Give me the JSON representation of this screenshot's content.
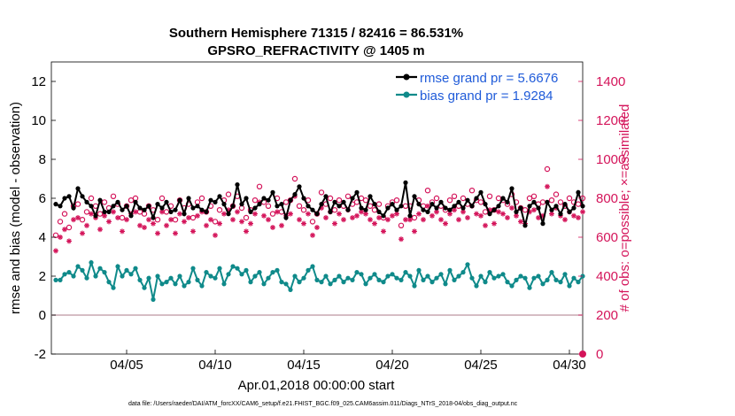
{
  "chart_data": {
    "type": "line",
    "title_line1": "Southern Hemisphere 71315 / 82416 = 86.531%",
    "title_line2": "GPSRO_REFRACTIVITY @ 1405 m",
    "ylabel_left": "rmse and bias (model - observation)",
    "ylabel_right": "# of obs: o=possible; ×=assimilated",
    "xlabel": "Apr.01,2018 00:00:00 start",
    "footer": "data file: /Users/raeder/DAI/ATM_forcXX/CAM6_setup/f.e21.FHIST_BGC.f09_025.CAM6assim.011/Diags_NTrS_2018-04/obs_diag_output.nc",
    "ylim_left": [
      -2,
      13
    ],
    "ylim_right": [
      0,
      1500
    ],
    "xlim": [
      0.75,
      30.75
    ],
    "yticks_left": [
      "-2",
      "0",
      "2",
      "4",
      "6",
      "8",
      "10",
      "12"
    ],
    "yticks_right": [
      "0",
      "200",
      "400",
      "600",
      "800",
      "1000",
      "1200",
      "1400"
    ],
    "xticks": [
      {
        "label": "04/05",
        "day": 5
      },
      {
        "label": "04/10",
        "day": 10
      },
      {
        "label": "04/15",
        "day": 15
      },
      {
        "label": "04/20",
        "day": 20
      },
      {
        "label": "04/25",
        "day": 25
      },
      {
        "label": "04/30",
        "day": 30
      }
    ],
    "legend": [
      {
        "label": "rmse grand pr = 5.6676",
        "color": "#000000"
      },
      {
        "label": "bias grand pr = 1.9284",
        "color": "#0f8a8a"
      }
    ],
    "series": [
      {
        "name": "rmse",
        "color": "#000000",
        "axis": "left",
        "points_per_day": 4,
        "values": [
          5.7,
          5.6,
          6.0,
          6.1,
          5.5,
          6.5,
          6.1,
          5.8,
          5.6,
          5.1,
          5.9,
          5.3,
          5.3,
          5.6,
          5.8,
          5.4,
          5.6,
          5.1,
          5.8,
          5.5,
          5.4,
          5.6,
          5.0,
          5.7,
          5.5,
          5.8,
          5.3,
          5.4,
          5.9,
          5.2,
          6.0,
          5.5,
          5.6,
          5.4,
          5.3,
          5.9,
          5.8,
          6.1,
          5.7,
          5.2,
          5.6,
          6.7,
          5.7,
          6.0,
          5.3,
          5.5,
          5.7,
          6.0,
          5.9,
          6.3,
          5.6,
          5.7,
          5.0,
          5.9,
          6.2,
          6.6,
          6.0,
          5.6,
          5.4,
          5.2,
          5.7,
          6.1,
          5.3,
          5.8,
          5.6,
          5.8,
          5.4,
          6.0,
          6.3,
          5.5,
          5.4,
          6.1,
          5.7,
          5.3,
          5.1,
          5.5,
          5.7,
          5.4,
          5.6,
          6.8,
          5.1,
          6.1,
          5.7,
          5.4,
          5.3,
          5.7,
          5.5,
          5.8,
          5.5,
          5.4,
          5.6,
          5.8,
          5.5,
          5.9,
          5.6,
          6.0,
          6.3,
          5.7,
          5.2,
          5.4,
          5.6,
          6.0,
          5.8,
          6.5,
          5.3,
          5.5,
          4.6,
          5.6,
          5.8,
          5.5,
          4.7,
          5.8,
          5.4,
          5.6,
          5.2,
          5.7,
          5.3,
          5.5,
          6.3,
          5.6,
          5.9,
          5.1,
          5.4,
          5.7,
          5.5,
          5.8,
          5.2,
          5.6,
          6.3,
          5.4,
          5.8,
          5.2,
          5.7,
          6.0,
          5.5,
          5.4,
          5.9,
          5.1,
          5.6,
          6.2,
          5.4,
          5.8,
          5.3,
          5.5,
          5.9,
          5.6,
          5.2,
          5.7,
          6.1,
          5.6,
          5.4,
          5.8,
          5.5,
          6.0,
          6.1,
          5.6,
          5.3,
          5.9,
          5.6,
          5.2,
          5.7,
          5.5,
          6.0,
          5.4,
          5.8,
          6.0,
          5.6,
          5.5,
          6.9,
          5.5,
          5.9,
          6.0,
          5.4,
          5.1,
          6.1,
          5.7,
          4.9,
          6.0,
          5.3,
          5.7,
          5.6,
          5.5,
          5.8,
          5.8,
          6.2
        ]
      },
      {
        "name": "bias",
        "color": "#0f8a8a",
        "axis": "left",
        "points_per_day": 4,
        "values": [
          1.8,
          1.8,
          2.1,
          2.2,
          2.0,
          2.5,
          2.3,
          1.9,
          2.7,
          2.0,
          2.4,
          2.2,
          1.7,
          1.4,
          2.5,
          2.0,
          2.3,
          2.1,
          2.4,
          1.8,
          1.4,
          1.9,
          0.8,
          2.0,
          1.6,
          1.7,
          1.9,
          1.6,
          2.0,
          1.5,
          1.7,
          2.4,
          1.8,
          1.5,
          2.2,
          2.0,
          1.9,
          2.4,
          1.6,
          2.1,
          2.5,
          2.4,
          2.1,
          2.3,
          1.7,
          2.0,
          2.2,
          1.6,
          1.9,
          2.2,
          2.3,
          1.7,
          1.6,
          1.3,
          2.0,
          1.7,
          1.9,
          2.3,
          2.5,
          1.8,
          1.7,
          2.0,
          1.6,
          1.8,
          2.0,
          1.7,
          1.9,
          1.8,
          2.2,
          2.1,
          1.6,
          1.9,
          2.1,
          1.8,
          1.7,
          2.0,
          2.1,
          1.9,
          1.8,
          2.2,
          2.0,
          1.5,
          2.3,
          1.8,
          2.0,
          1.7,
          1.9,
          2.1,
          1.6,
          2.3,
          1.8,
          2.0,
          2.2,
          2.6,
          1.9,
          1.5,
          2.0,
          1.7,
          2.2,
          1.9,
          2.0,
          2.1,
          1.7,
          1.5,
          1.8,
          2.0,
          1.9,
          1.4,
          1.9,
          2.0,
          1.6,
          1.8,
          2.2,
          1.8,
          1.7,
          2.1,
          1.5,
          1.9,
          1.7,
          2.0,
          2.1,
          1.8,
          2.0,
          1.6,
          1.9,
          2.1,
          1.8,
          1.5,
          2.0,
          1.9,
          1.8,
          2.1,
          1.8,
          1.7,
          2.0,
          1.9,
          1.8,
          2.1,
          1.6,
          2.0,
          1.5,
          1.9,
          2.2,
          1.7,
          1.6,
          2.0,
          1.8,
          1.7,
          1.5,
          1.9,
          2.1,
          2.0,
          1.8,
          1.7,
          1.9,
          2.2,
          1.8,
          1.5,
          2.3,
          1.6,
          2.0,
          1.9,
          1.4,
          2.2,
          2.0,
          1.8,
          1.7,
          2.1,
          1.9,
          2.5,
          1.6,
          1.8,
          2.3,
          2.0,
          2.1,
          1.9,
          1.6,
          2.0,
          2.2,
          1.8,
          1.9,
          2.3,
          2.2
        ]
      },
      {
        "name": "possible",
        "color": "#d4145a",
        "axis": "right",
        "marker": "circle",
        "points_per_day": 4,
        "values": [
          610,
          680,
          720,
          650,
          760,
          770,
          690,
          730,
          800,
          760,
          720,
          780,
          750,
          810,
          770,
          700,
          760,
          790,
          800,
          730,
          720,
          760,
          740,
          690,
          800,
          730,
          760,
          690,
          790,
          750,
          770,
          700,
          780,
          800,
          730,
          760,
          680,
          740,
          790,
          820,
          760,
          810,
          750,
          700,
          740,
          790,
          860,
          780,
          760,
          720,
          800,
          730,
          780,
          790,
          900,
          760,
          740,
          790,
          680,
          720,
          830,
          770,
          800,
          740,
          790,
          760,
          810,
          770,
          780,
          800,
          790,
          760,
          740,
          770,
          700,
          760,
          780,
          790,
          660,
          760,
          760,
          700,
          790,
          760,
          840,
          780,
          800,
          760,
          740,
          790,
          810,
          760,
          800,
          770,
          840,
          790,
          780,
          730,
          810,
          740,
          800,
          790,
          770,
          820,
          780,
          750,
          740,
          800,
          810,
          770,
          780,
          950,
          790,
          820,
          780,
          760,
          800,
          780,
          770,
          800,
          760,
          790,
          780,
          830,
          760,
          750,
          790,
          800,
          880,
          740,
          810,
          780,
          790,
          770,
          800,
          760,
          760,
          780,
          790,
          770,
          760,
          810,
          800,
          820,
          790,
          780,
          770,
          800,
          760,
          820,
          790,
          770,
          810,
          790,
          780,
          800,
          760,
          840,
          800,
          780,
          790,
          940,
          770,
          830,
          760,
          790,
          800,
          830,
          810,
          780,
          800,
          790,
          830,
          800,
          820,
          790
        ]
      },
      {
        "name": "assimilated",
        "color": "#d4145a",
        "axis": "right",
        "marker": "star",
        "points_per_day": 4,
        "values": [
          530,
          600,
          640,
          580,
          690,
          700,
          620,
          660,
          720,
          700,
          640,
          710,
          680,
          730,
          700,
          630,
          690,
          720,
          730,
          660,
          650,
          690,
          670,
          620,
          730,
          660,
          690,
          620,
          720,
          680,
          700,
          630,
          710,
          730,
          660,
          690,
          610,
          670,
          720,
          740,
          690,
          730,
          680,
          630,
          670,
          720,
          780,
          710,
          690,
          650,
          730,
          660,
          710,
          720,
          810,
          690,
          670,
          720,
          610,
          650,
          750,
          700,
          730,
          670,
          720,
          690,
          740,
          700,
          710,
          730,
          720,
          690,
          670,
          700,
          630,
          690,
          710,
          720,
          590,
          690,
          690,
          630,
          720,
          690,
          760,
          710,
          730,
          690,
          670,
          720,
          740,
          690,
          730,
          700,
          760,
          720,
          710,
          660,
          740,
          670,
          730,
          720,
          700,
          750,
          710,
          680,
          670,
          730,
          740,
          700,
          710,
          860,
          720,
          750,
          710,
          690,
          730,
          710,
          700,
          730,
          690,
          720,
          710,
          760,
          690,
          680,
          720,
          730,
          800,
          670,
          740,
          710,
          720,
          700,
          730,
          690,
          690,
          710,
          720,
          700,
          690,
          740,
          730,
          750,
          720,
          710,
          700,
          730,
          690,
          750,
          720,
          700,
          740,
          720,
          710,
          730,
          690,
          770,
          730,
          710,
          720,
          850,
          700,
          760,
          690,
          720,
          730,
          760,
          740,
          710,
          730,
          720,
          760,
          730,
          750,
          720
        ]
      }
    ],
    "special_points": [
      {
        "series": "assimilated_edge",
        "day": 30.75,
        "value": 0,
        "axis": "right"
      }
    ]
  }
}
